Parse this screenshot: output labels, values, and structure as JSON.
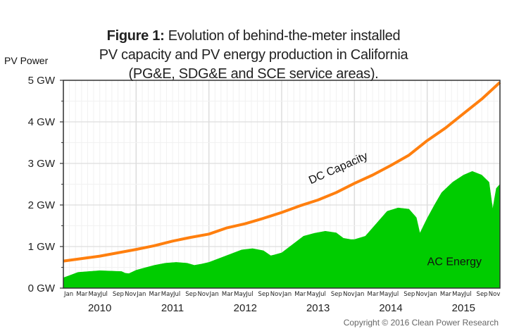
{
  "title": {
    "bold": "Figure 1:",
    "line1": "Evolution of behind-the-meter installed",
    "line2": "PV capacity and PV energy production in California",
    "line3": "(PG&E, SDG&E and SCE service areas)."
  },
  "copyright": "Copyright © 2016 Clean Power Research",
  "chart_data": {
    "type": "area",
    "title": "Figure 1: Evolution of behind-the-meter installed PV capacity and PV energy production in California (PG&E, SDG&E and SCE service areas).",
    "ylabel": "PV Power",
    "xlabel": "",
    "ylim": [
      0,
      5
    ],
    "xlim": [
      2010.0,
      2016.0
    ],
    "y_ticks": [
      "0 GW",
      "1 GW",
      "2 GW",
      "3 GW",
      "4 GW",
      "5 GW"
    ],
    "y_tick_values": [
      0,
      1,
      2,
      3,
      4,
      5
    ],
    "month_ticks": [
      "Jan",
      "Mar",
      "May",
      "Jul",
      "Sep",
      "Nov"
    ],
    "years": [
      "2010",
      "2011",
      "2012",
      "2013",
      "2014",
      "2015"
    ],
    "grid": true,
    "colors": {
      "capacity": "#ff7f0e",
      "energy": "#00cc00",
      "grid": "#dddddd",
      "grid_minor": "#f1f1f1",
      "axis": "#333333"
    },
    "annotations": [
      {
        "text": "DC Capacity",
        "series": "DC Capacity",
        "x": 2013.4,
        "y": 2.5
      },
      {
        "text": "AC Energy",
        "series": "AC Energy",
        "x": 2015.0,
        "y": 0.55
      }
    ],
    "series": [
      {
        "name": "DC Capacity",
        "type": "line",
        "x": [
          2010.0,
          2010.25,
          2010.5,
          2010.75,
          2011.0,
          2011.25,
          2011.5,
          2011.75,
          2012.0,
          2012.25,
          2012.5,
          2012.75,
          2013.0,
          2013.25,
          2013.5,
          2013.75,
          2014.0,
          2014.25,
          2014.5,
          2014.75,
          2015.0,
          2015.25,
          2015.5,
          2015.75,
          2016.0
        ],
        "values": [
          0.65,
          0.71,
          0.77,
          0.85,
          0.93,
          1.02,
          1.13,
          1.22,
          1.3,
          1.45,
          1.55,
          1.68,
          1.82,
          1.98,
          2.12,
          2.3,
          2.52,
          2.72,
          2.95,
          3.2,
          3.55,
          3.85,
          4.2,
          4.55,
          4.95
        ]
      },
      {
        "name": "AC Energy",
        "type": "area",
        "x": [
          2010.0,
          2010.08,
          2010.2,
          2010.35,
          2010.5,
          2010.65,
          2010.8,
          2010.85,
          2010.9,
          2011.0,
          2011.1,
          2011.25,
          2011.4,
          2011.55,
          2011.7,
          2011.8,
          2011.9,
          2012.0,
          2012.15,
          2012.3,
          2012.45,
          2012.6,
          2012.75,
          2012.85,
          2012.9,
          2013.0,
          2013.15,
          2013.3,
          2013.45,
          2013.6,
          2013.75,
          2013.85,
          2013.95,
          2014.0,
          2014.15,
          2014.3,
          2014.45,
          2014.6,
          2014.75,
          2014.85,
          2014.9,
          2015.0,
          2015.1,
          2015.2,
          2015.35,
          2015.5,
          2015.62,
          2015.75,
          2015.85,
          2015.9,
          2015.95,
          2016.0
        ],
        "values": [
          0.25,
          0.3,
          0.38,
          0.4,
          0.42,
          0.41,
          0.4,
          0.36,
          0.35,
          0.43,
          0.48,
          0.55,
          0.6,
          0.62,
          0.6,
          0.55,
          0.58,
          0.62,
          0.72,
          0.82,
          0.92,
          0.95,
          0.9,
          0.78,
          0.8,
          0.85,
          1.05,
          1.25,
          1.32,
          1.37,
          1.33,
          1.2,
          1.17,
          1.17,
          1.25,
          1.55,
          1.85,
          1.93,
          1.9,
          1.7,
          1.32,
          1.68,
          2.0,
          2.3,
          2.55,
          2.72,
          2.81,
          2.72,
          2.55,
          1.9,
          2.4,
          2.5
        ]
      }
    ]
  }
}
